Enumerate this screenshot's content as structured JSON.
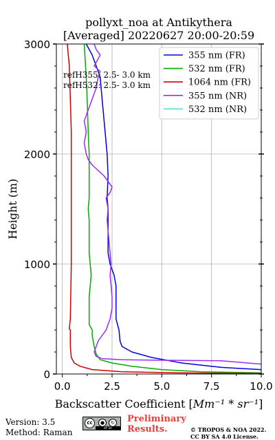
{
  "chart_data": {
    "type": "line",
    "title": "pollyxt_noa at Antikythera",
    "subtitle": "[Averaged] 20220627 20:00-20:59",
    "xlabel_prefix": "Backscatter Coefficient [",
    "xlabel_math": "Mm⁻¹ * sr⁻¹",
    "xlabel_suffix": "]",
    "ylabel": "Height (m)",
    "xlim": [
      -0.3,
      10.0
    ],
    "ylim": [
      0,
      3000
    ],
    "xticks": [
      0.0,
      2.5,
      5.0,
      7.5,
      10.0
    ],
    "xtick_labels": [
      "0.0",
      "2.5",
      "5.0",
      "7.5",
      "10.0"
    ],
    "yticks": [
      0,
      1000,
      2000,
      3000
    ],
    "ytick_labels": [
      "0",
      "1000",
      "2000",
      "3000"
    ],
    "grid": true,
    "legend_position": "top-right",
    "annotations": [
      "refH355:  2.5- 3.0 km",
      "refH532:  2.5- 3.0 km"
    ],
    "series": [
      {
        "name": "355 nm (FR)",
        "color": "#0000dd",
        "points": [
          [
            10.0,
            40
          ],
          [
            8.0,
            60
          ],
          [
            6.0,
            100
          ],
          [
            4.5,
            150
          ],
          [
            3.5,
            200
          ],
          [
            3.0,
            250
          ],
          [
            2.9,
            300
          ],
          [
            2.85,
            400
          ],
          [
            2.7,
            500
          ],
          [
            2.7,
            800
          ],
          [
            2.6,
            900
          ],
          [
            2.4,
            1000
          ],
          [
            2.3,
            1100
          ],
          [
            2.3,
            1500
          ],
          [
            2.25,
            1600
          ],
          [
            2.3,
            1800
          ],
          [
            2.25,
            2000
          ],
          [
            2.15,
            2200
          ],
          [
            2.0,
            2500
          ],
          [
            1.9,
            2700
          ],
          [
            1.7,
            2800
          ],
          [
            1.5,
            2900
          ],
          [
            1.2,
            3000
          ]
        ]
      },
      {
        "name": "532 nm (FR)",
        "color": "#00aa00",
        "points": [
          [
            10.0,
            10
          ],
          [
            7.0,
            20
          ],
          [
            5.0,
            40
          ],
          [
            3.5,
            70
          ],
          [
            2.5,
            100
          ],
          [
            1.9,
            130
          ],
          [
            1.7,
            180
          ],
          [
            1.6,
            250
          ],
          [
            1.5,
            350
          ],
          [
            1.5,
            400
          ],
          [
            1.35,
            450
          ],
          [
            1.35,
            700
          ],
          [
            1.4,
            800
          ],
          [
            1.45,
            900
          ],
          [
            1.4,
            1000
          ],
          [
            1.35,
            1100
          ],
          [
            1.35,
            1400
          ],
          [
            1.3,
            1500
          ],
          [
            1.35,
            1600
          ],
          [
            1.35,
            2000
          ],
          [
            1.3,
            2200
          ],
          [
            1.25,
            2500
          ],
          [
            1.2,
            2700
          ],
          [
            1.1,
            3000
          ]
        ]
      },
      {
        "name": "1064 nm (FR)",
        "color": "#cc0000",
        "points": [
          [
            10.0,
            5
          ],
          [
            6.0,
            10
          ],
          [
            3.0,
            20
          ],
          [
            1.5,
            40
          ],
          [
            0.9,
            70
          ],
          [
            0.6,
            100
          ],
          [
            0.45,
            150
          ],
          [
            0.4,
            250
          ],
          [
            0.4,
            400
          ],
          [
            0.35,
            410
          ],
          [
            0.4,
            500
          ],
          [
            0.45,
            1000
          ],
          [
            0.45,
            1500
          ],
          [
            0.45,
            2000
          ],
          [
            0.45,
            2200
          ],
          [
            0.4,
            2500
          ],
          [
            0.35,
            2800
          ],
          [
            0.25,
            3000
          ]
        ]
      },
      {
        "name": "355 nm (NR)",
        "color": "#9a2cf0",
        "points": [
          [
            10.0,
            90
          ],
          [
            8.0,
            120
          ],
          [
            5.0,
            125
          ],
          [
            3.0,
            130
          ],
          [
            2.0,
            140
          ],
          [
            1.7,
            160
          ],
          [
            1.6,
            200
          ],
          [
            1.7,
            250
          ],
          [
            1.8,
            300
          ],
          [
            2.0,
            350
          ],
          [
            2.2,
            400
          ],
          [
            2.4,
            500
          ],
          [
            2.5,
            600
          ],
          [
            2.5,
            700
          ],
          [
            2.45,
            800
          ],
          [
            2.4,
            900
          ],
          [
            2.45,
            1000
          ],
          [
            2.4,
            1100
          ],
          [
            2.35,
            1200
          ],
          [
            2.3,
            1300
          ],
          [
            2.25,
            1400
          ],
          [
            2.3,
            1500
          ],
          [
            2.2,
            1600
          ],
          [
            2.4,
            1650
          ],
          [
            2.5,
            1700
          ],
          [
            2.3,
            1750
          ],
          [
            2.1,
            1800
          ],
          [
            1.8,
            1850
          ],
          [
            1.5,
            1900
          ],
          [
            1.3,
            1950
          ],
          [
            1.2,
            2000
          ],
          [
            1.1,
            2100
          ],
          [
            1.2,
            2200
          ],
          [
            1.1,
            2300
          ],
          [
            1.3,
            2400
          ],
          [
            1.5,
            2500
          ],
          [
            1.7,
            2600
          ],
          [
            1.8,
            2700
          ],
          [
            1.9,
            2750
          ],
          [
            1.6,
            2800
          ],
          [
            1.9,
            2900
          ],
          [
            1.7,
            2950
          ],
          [
            1.6,
            3000
          ]
        ]
      },
      {
        "name": "532 nm (NR)",
        "color": "#40e8c8",
        "points": []
      }
    ]
  },
  "footer": {
    "version": "Version: 3.5",
    "method": "Method: Raman",
    "cc_mark": "cc",
    "cc_strip": "BY   SA",
    "preliminary_line1": "Preliminary",
    "preliminary_line2": "Results.",
    "copyright_line1": "© TROPOS & NOA 2022.",
    "copyright_line2": "CC BY SA 4.0 License."
  }
}
